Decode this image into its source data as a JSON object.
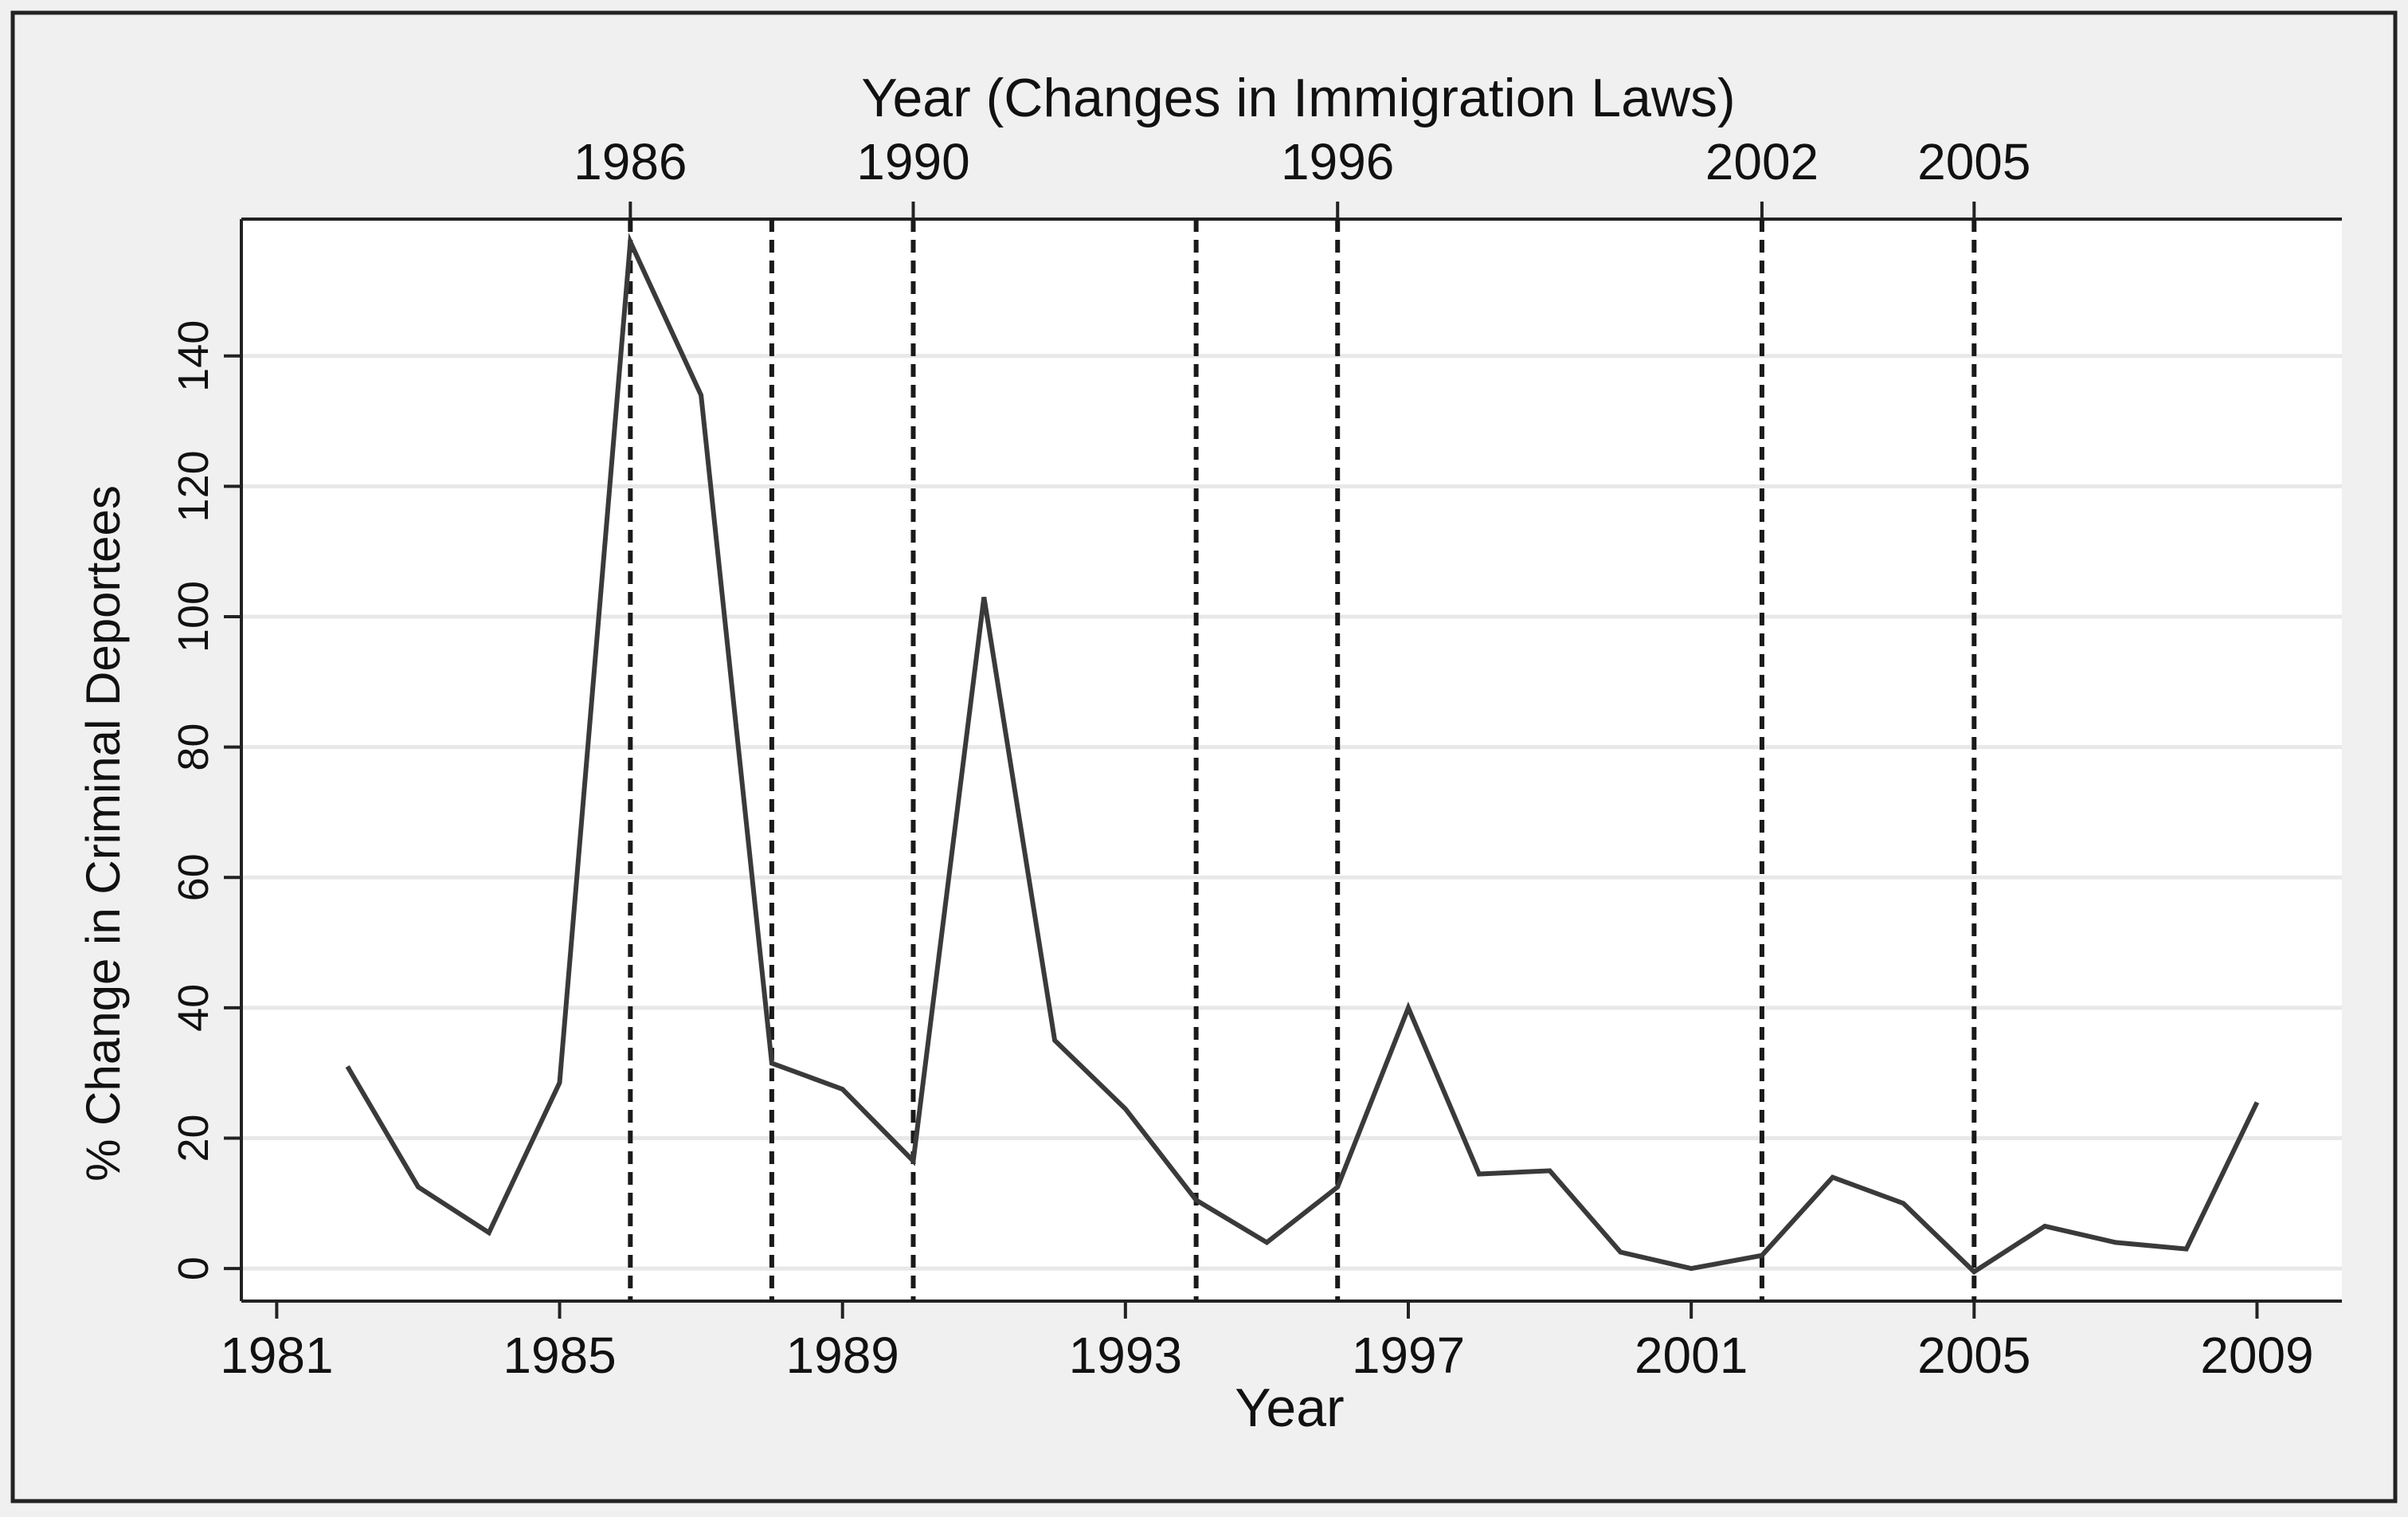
{
  "chart_data": {
    "type": "line",
    "title": "",
    "xlabel": "Year",
    "ylabel": "% Change in Criminal Deportees",
    "top_axis_title": "Year (Changes in Immigration Laws)",
    "xlim": [
      1980.5,
      2010.2
    ],
    "ylim": [
      -5,
      161
    ],
    "x_ticks": [
      1981,
      1985,
      1989,
      1993,
      1997,
      2001,
      2005,
      2009
    ],
    "y_ticks": [
      0,
      20,
      40,
      60,
      80,
      100,
      120,
      140
    ],
    "grid": true,
    "law_change_years": [
      1986,
      1988,
      1990,
      1994,
      1996,
      2002,
      2005
    ],
    "top_tick_labels": [
      {
        "year": 1986,
        "label": "1986"
      },
      {
        "year": 1990,
        "label": "1990"
      },
      {
        "year": 1996,
        "label": "1996"
      },
      {
        "year": 2002,
        "label": "2002"
      },
      {
        "year": 2005,
        "label": "2005"
      }
    ],
    "series": [
      {
        "name": "% Change in Criminal Deportees",
        "color": "#3a3a3a",
        "x": [
          1982,
          1983,
          1984,
          1985,
          1986,
          1987,
          1988,
          1989,
          1990,
          1991,
          1992,
          1993,
          1994,
          1995,
          1996,
          1997,
          1998,
          1999,
          2000,
          2001,
          2002,
          2003,
          2004,
          2005,
          2006,
          2007,
          2008,
          2009
        ],
        "values": [
          31,
          12.5,
          5.5,
          28.5,
          157.5,
          134,
          31.5,
          27.5,
          16.5,
          103,
          35,
          24.5,
          10.5,
          4,
          12.5,
          40,
          14.5,
          15,
          2.5,
          0,
          2,
          14,
          10,
          -0.5,
          6.5,
          4,
          3,
          25.5
        ]
      }
    ],
    "colors": {
      "background": "#f0f0f0",
      "plot_background": "#ffffff",
      "line": "#3a3a3a",
      "grid": "#e8e8e8",
      "axis": "#222222"
    }
  }
}
